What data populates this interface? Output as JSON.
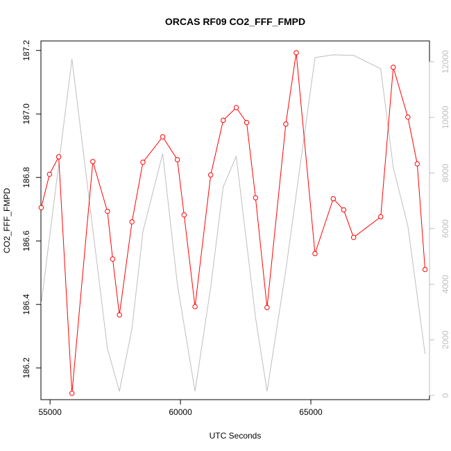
{
  "chart_data": {
    "type": "line",
    "title": "ORCAS RF09 CO2_FFF_FMPD",
    "xlabel": "UTC Seconds",
    "ylabel": "CO2_FFF_FMPD",
    "xlim": [
      54650,
      69550
    ],
    "ylim": [
      186.1,
      187.23
    ],
    "y2lim": [
      -150,
      12750
    ],
    "x_ticks": [
      55000,
      60000,
      65000
    ],
    "y_ticks": [
      186.2,
      186.4,
      186.6,
      186.8,
      187.0,
      187.2
    ],
    "y2_ticks": [
      0,
      2000,
      4000,
      6000,
      8000,
      10000,
      12000
    ],
    "x_tick_labels": [
      "55000",
      "60000",
      "65000"
    ],
    "y_tick_labels": [
      "186.2",
      "186.4",
      "186.6",
      "186.8",
      "187.0",
      "187.2"
    ],
    "y2_tick_labels": [
      "0",
      "2000",
      "4000",
      "6000",
      "8000",
      "10000",
      "12000"
    ],
    "grid": false,
    "series": [
      {
        "axis": "left",
        "color": "#ff0000",
        "marker": "open-circle",
        "x": [
          54660,
          54980,
          55330,
          55840,
          56640,
          57200,
          57400,
          57660,
          58140,
          58560,
          59320,
          59880,
          60140,
          60560,
          61160,
          61640,
          62140,
          62540,
          62880,
          63320,
          64040,
          64440,
          65160,
          65860,
          66260,
          66640,
          67680,
          68160,
          68720,
          69080,
          69380
        ],
        "y": [
          186.705,
          186.81,
          186.865,
          186.12,
          186.85,
          186.693,
          186.543,
          186.367,
          186.66,
          186.848,
          186.928,
          186.856,
          186.682,
          186.393,
          186.808,
          186.98,
          187.02,
          186.973,
          186.736,
          186.39,
          186.968,
          187.193,
          186.56,
          186.733,
          186.698,
          186.611,
          186.676,
          187.147,
          186.99,
          186.843,
          186.51
        ]
      },
      {
        "axis": "right",
        "color": "#bebebe",
        "marker": "none",
        "x": [
          54660,
          55840,
          57200,
          57660,
          58140,
          58560,
          59320,
          59880,
          60560,
          61160,
          61640,
          62140,
          62880,
          63320,
          64040,
          65160,
          65860,
          66640,
          67680,
          68160,
          68720,
          69380
        ],
        "y": [
          3300,
          12100,
          1700,
          150,
          2400,
          5900,
          8700,
          4000,
          150,
          3900,
          7500,
          8600,
          2800,
          150,
          4500,
          12150,
          12250,
          12230,
          11750,
          8200,
          6100,
          1500
        ]
      }
    ]
  }
}
